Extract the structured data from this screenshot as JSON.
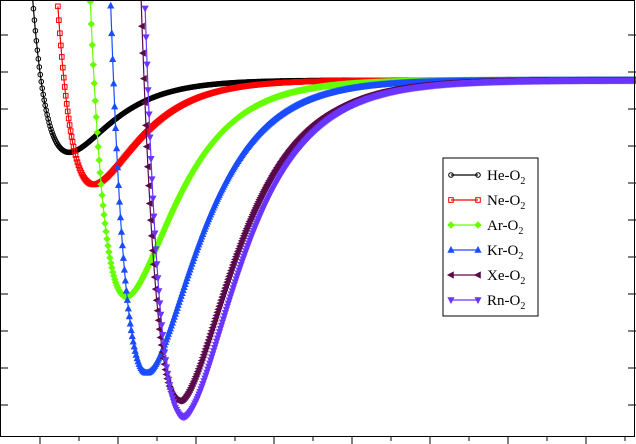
{
  "chart_data": {
    "type": "line",
    "title": "",
    "xlabel": "",
    "ylabel": "",
    "tick_labels_visible": false,
    "grid": false,
    "legend_placement": "right-center",
    "legend": [
      {
        "label": "He-O",
        "sub": "2"
      },
      {
        "label": "Ne-O",
        "sub": "2"
      },
      {
        "label": "Ar-O",
        "sub": "2"
      },
      {
        "label": "Kr-O",
        "sub": "2"
      },
      {
        "label": "Xe-O",
        "sub": "2"
      },
      {
        "label": "Rn-O",
        "sub": "2"
      }
    ],
    "series": [
      {
        "color": "#000000",
        "marker": "circle",
        "x0": 2.55,
        "xe": 3.05,
        "depth": 1.8,
        "k": 2.0
      },
      {
        "color": "#ff0000",
        "marker": "square",
        "x0": 2.85,
        "xe": 3.35,
        "depth": 2.6,
        "k": 1.9
      },
      {
        "color": "#66ff00",
        "marker": "diamond",
        "x0": 3.2,
        "xe": 3.75,
        "depth": 5.4,
        "k": 1.75
      },
      {
        "color": "#1a4dff",
        "marker": "triangle-up",
        "x0": 3.45,
        "xe": 4.0,
        "depth": 7.3,
        "k": 1.7
      },
      {
        "color": "#5a0a4a",
        "marker": "triangle-left",
        "x0": 3.75,
        "xe": 4.4,
        "depth": 8.0,
        "k": 1.6
      },
      {
        "color": "#6a35ff",
        "marker": "triangle-down",
        "x0": 3.8,
        "xe": 4.45,
        "depth": 8.4,
        "k": 1.58
      }
    ]
  }
}
